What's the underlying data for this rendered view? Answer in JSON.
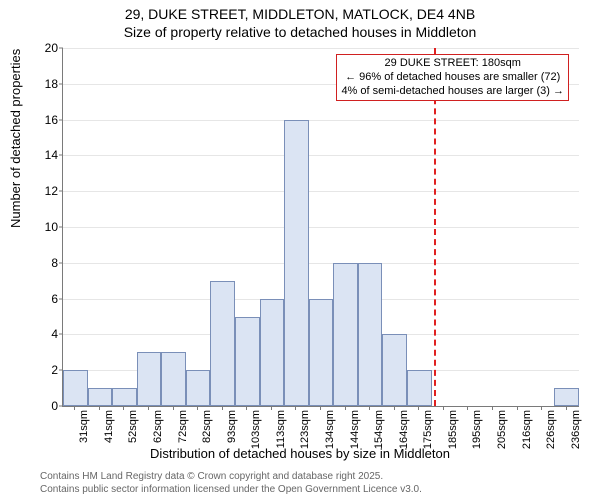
{
  "title": {
    "line1": "29, DUKE STREET, MIDDLETON, MATLOCK, DE4 4NB",
    "line2": "Size of property relative to detached houses in Middleton",
    "fontsize": 14,
    "color": "#000000"
  },
  "chart": {
    "type": "histogram",
    "background_color": "#ffffff",
    "grid_color": "#e6e6e6",
    "axis_color": "#7a7a7a",
    "bar_fill": "#dbe4f3",
    "bar_border": "#7a8fb8",
    "ylim": [
      0,
      20
    ],
    "ytick_step": 2,
    "ylabel": "Number of detached properties",
    "xlabel": "Distribution of detached houses by size in Middleton",
    "label_fontsize": 13,
    "tick_fontsize": 12,
    "xtick_fontsize": 11,
    "categories": [
      "31sqm",
      "41sqm",
      "52sqm",
      "62sqm",
      "72sqm",
      "82sqm",
      "93sqm",
      "103sqm",
      "113sqm",
      "123sqm",
      "134sqm",
      "144sqm",
      "154sqm",
      "164sqm",
      "175sqm",
      "185sqm",
      "195sqm",
      "205sqm",
      "216sqm",
      "226sqm",
      "236sqm"
    ],
    "values": [
      2,
      1,
      1,
      3,
      3,
      2,
      7,
      5,
      6,
      16,
      6,
      8,
      8,
      4,
      2,
      0,
      0,
      0,
      0,
      0,
      1
    ],
    "bar_width_rel": 1.0,
    "marker_line": {
      "category_index": 14.6,
      "color": "#e02020",
      "dash": "dashed",
      "width": 2
    },
    "annotation": {
      "line1": "29 DUKE STREET: 180sqm",
      "line2": "← 96% of detached houses are smaller (72)",
      "line3": "4% of semi-detached houses are larger (3) →",
      "border_color": "#d02020",
      "background": "#ffffff",
      "fontsize": 11
    }
  },
  "yticks": [
    {
      "v": 0,
      "label": "0"
    },
    {
      "v": 2,
      "label": "2"
    },
    {
      "v": 4,
      "label": "4"
    },
    {
      "v": 6,
      "label": "6"
    },
    {
      "v": 8,
      "label": "8"
    },
    {
      "v": 10,
      "label": "10"
    },
    {
      "v": 12,
      "label": "12"
    },
    {
      "v": 14,
      "label": "14"
    },
    {
      "v": 16,
      "label": "16"
    },
    {
      "v": 18,
      "label": "18"
    },
    {
      "v": 20,
      "label": "20"
    }
  ],
  "footer": {
    "line1": "Contains HM Land Registry data © Crown copyright and database right 2025.",
    "line2": "Contains public sector information licensed under the Open Government Licence v3.0.",
    "fontsize": 10,
    "color": "#666666"
  }
}
